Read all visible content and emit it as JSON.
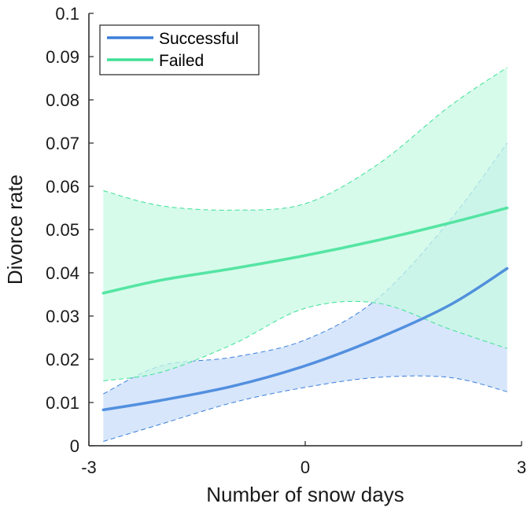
{
  "chart_data": {
    "type": "line",
    "xlabel": "Number of snow days",
    "ylabel": "Divorce rate",
    "xlim": [
      -3,
      3
    ],
    "ylim": [
      0,
      0.1
    ],
    "x_ticks": [
      -3,
      0,
      3
    ],
    "x_tick_labels": [
      "-3",
      "0",
      "3"
    ],
    "y_ticks": [
      0,
      0.01,
      0.02,
      0.03,
      0.04,
      0.05,
      0.06,
      0.07,
      0.08,
      0.09,
      0.1
    ],
    "y_tick_labels": [
      "0",
      "0.01",
      "0.02",
      "0.03",
      "0.04",
      "0.05",
      "0.06",
      "0.07",
      "0.08",
      "0.09",
      "0.1"
    ],
    "grid": false,
    "legend_position": "top-left",
    "series": [
      {
        "name": "Successful",
        "color": "#3b7fd9",
        "band_color": "#c9defa",
        "x": [
          -2.8,
          -2.0,
          -1.0,
          0.0,
          1.0,
          2.0,
          2.8
        ],
        "y": [
          0.0083,
          0.0105,
          0.0138,
          0.0185,
          0.0248,
          0.0325,
          0.041
        ],
        "lower": [
          0.001,
          0.005,
          0.01,
          0.0135,
          0.0158,
          0.0158,
          0.0125
        ],
        "upper": [
          0.012,
          0.0185,
          0.0205,
          0.0245,
          0.034,
          0.052,
          0.07
        ]
      },
      {
        "name": "Failed",
        "color": "#3ee096",
        "band_color": "#c8f9e4",
        "x": [
          -2.8,
          -2.0,
          -1.0,
          0.0,
          1.0,
          2.0,
          2.8
        ],
        "y": [
          0.0353,
          0.0383,
          0.041,
          0.044,
          0.0475,
          0.0515,
          0.055
        ],
        "lower": [
          0.015,
          0.017,
          0.0235,
          0.0318,
          0.033,
          0.027,
          0.0225
        ],
        "upper": [
          0.059,
          0.0555,
          0.0545,
          0.056,
          0.065,
          0.0785,
          0.0875
        ]
      }
    ]
  }
}
